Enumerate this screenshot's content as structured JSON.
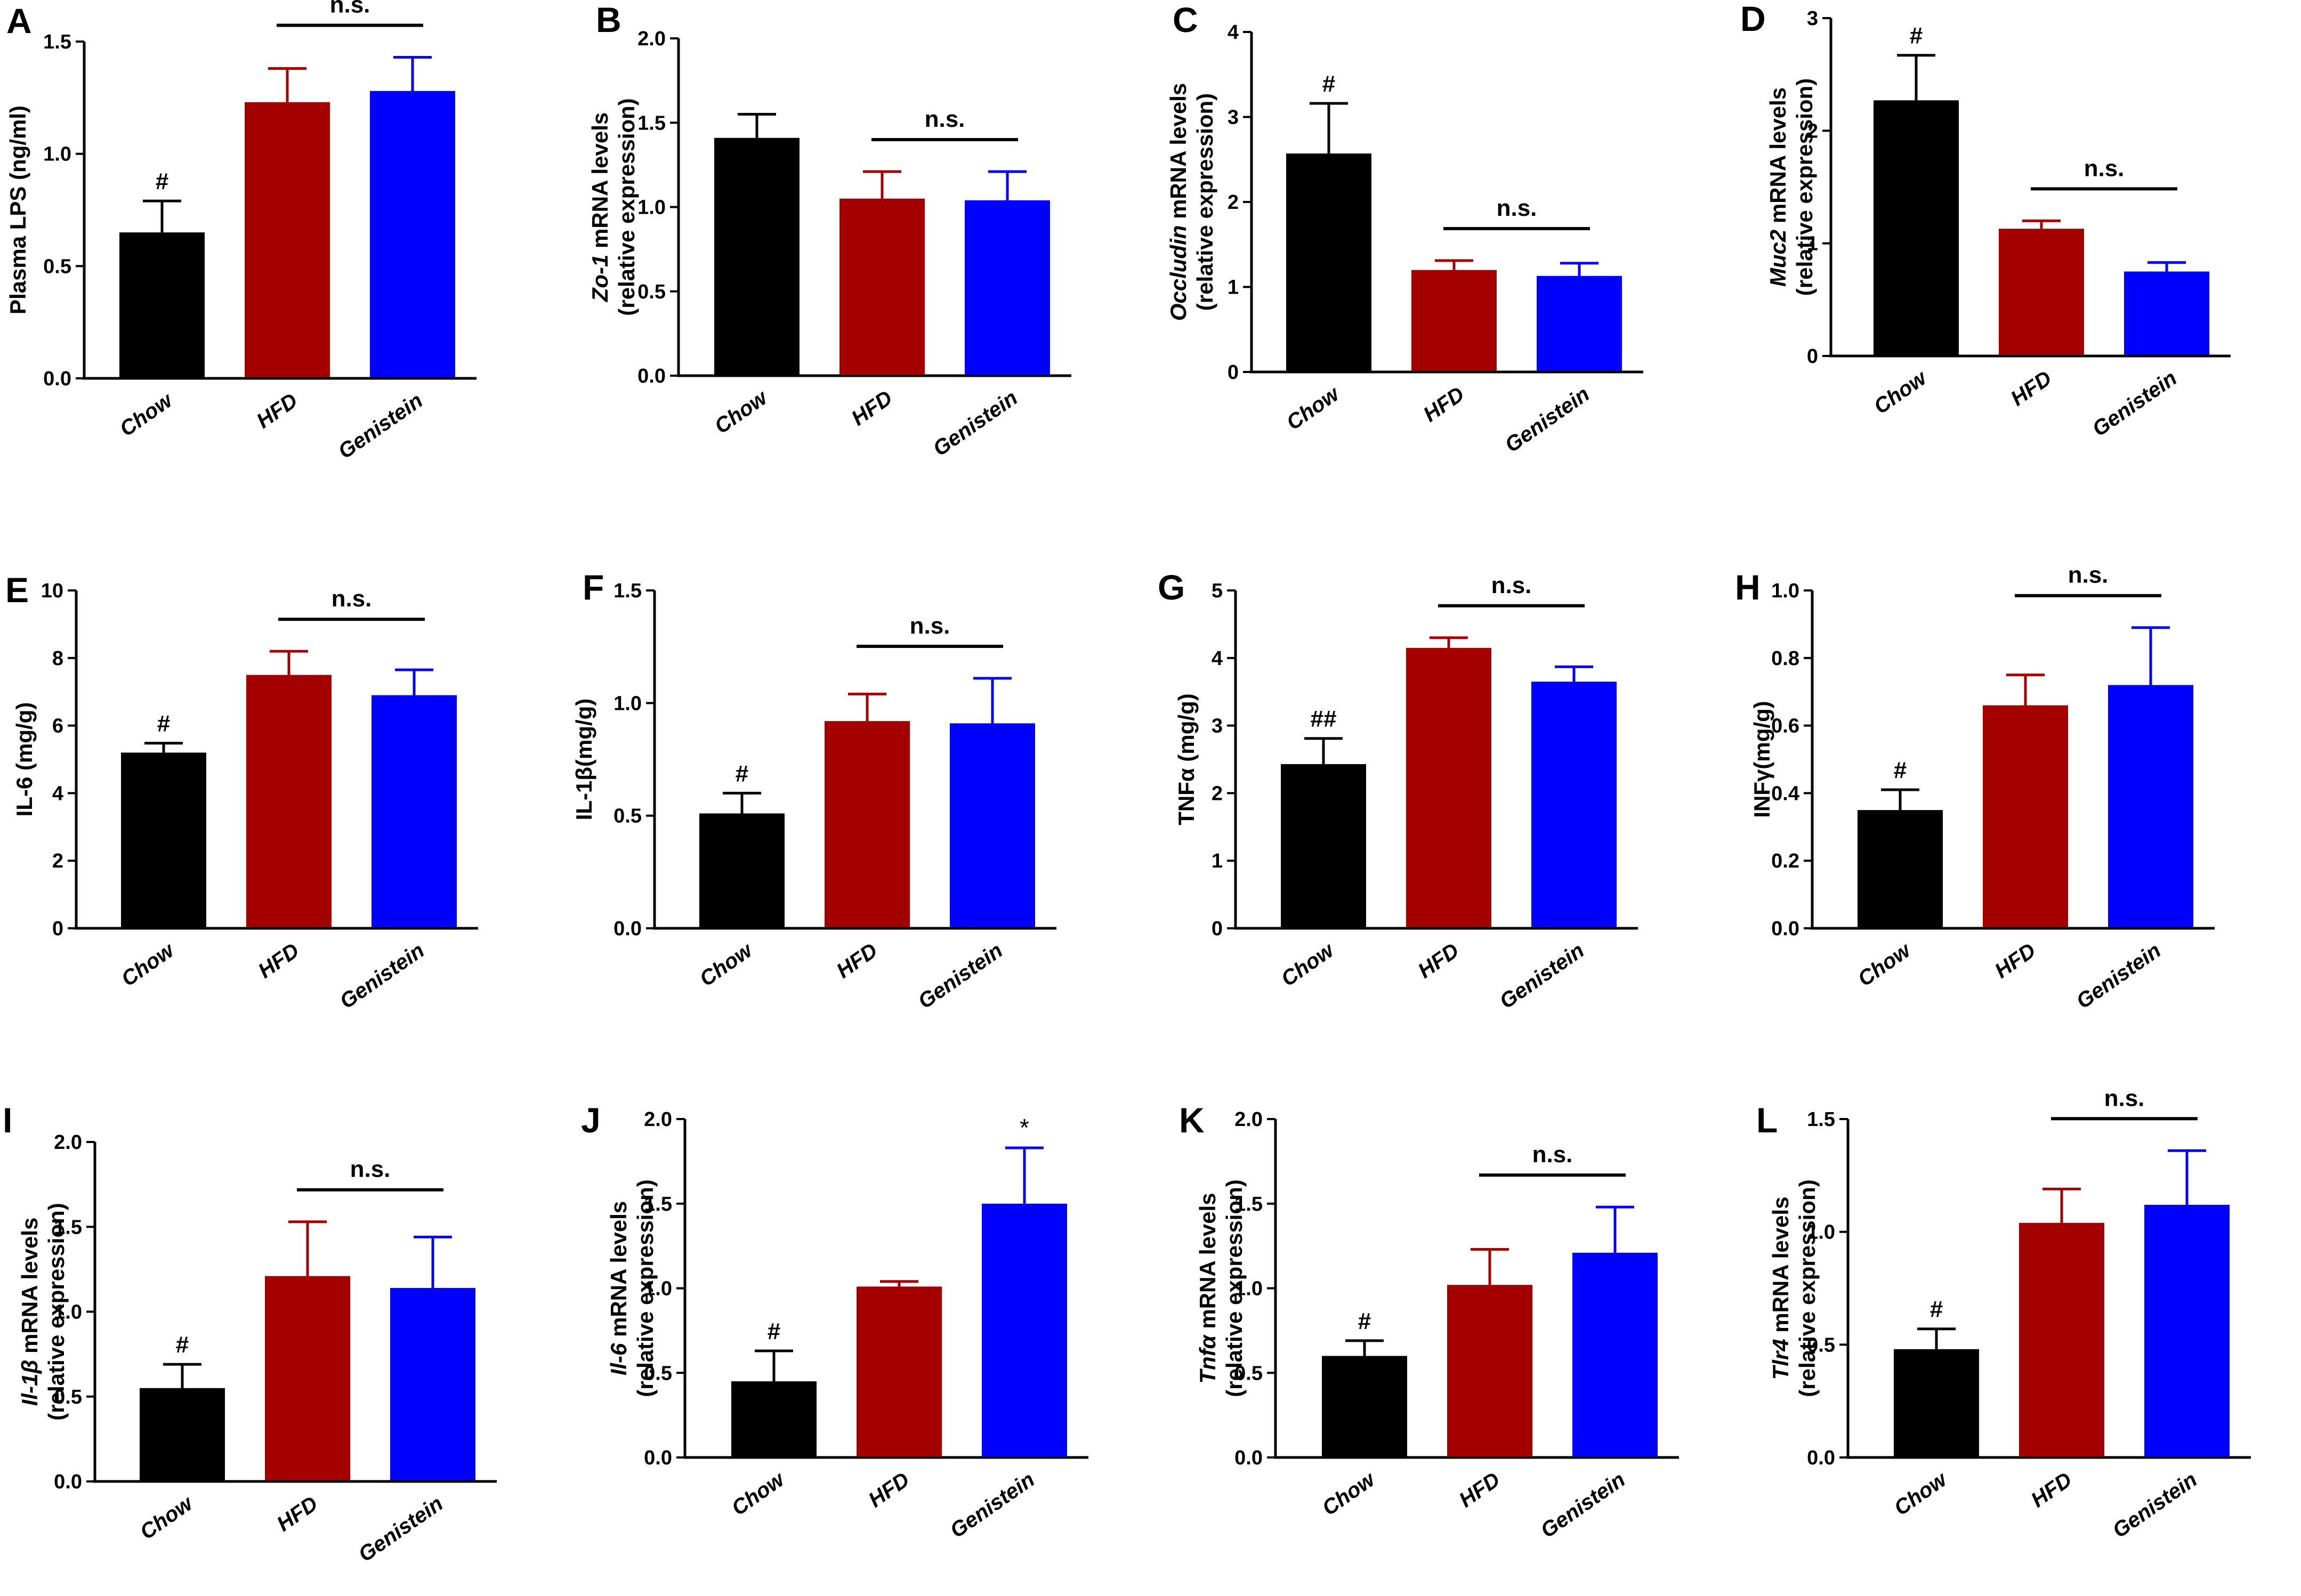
{
  "figure": {
    "categories": [
      "Chow",
      "HFD",
      "Genistein"
    ],
    "colors": {
      "Chow": "#000000",
      "HFD": "#a50000",
      "Genistein": "#0000ff",
      "axis": "#000000"
    }
  },
  "chart_data": [
    {
      "id": "A",
      "type": "bar",
      "letter": "A",
      "ylabel": [
        [
          {
            "t": "Plasma LPS (ng/ml)"
          }
        ]
      ],
      "categories": [
        "Chow",
        "HFD",
        "Genistein"
      ],
      "values": [
        0.65,
        1.23,
        1.28
      ],
      "errors": [
        0.14,
        0.15,
        0.15
      ],
      "ylim": [
        0,
        1.5
      ],
      "yticks": [
        "0.0",
        "0.5",
        "1.0",
        "1.5"
      ],
      "marks": [
        "#",
        "",
        ""
      ],
      "ns": {
        "text": "n.s.",
        "from": 1,
        "to": 2
      }
    },
    {
      "id": "B",
      "type": "bar",
      "letter": "B",
      "ylabel": [
        [
          {
            "t": "Zo-1",
            "i": true
          },
          {
            "t": " mRNA levels"
          }
        ],
        [
          {
            "t": "(relative expression)"
          }
        ]
      ],
      "categories": [
        "Chow",
        "HFD",
        "Genistein"
      ],
      "values": [
        1.41,
        1.05,
        1.04
      ],
      "errors": [
        0.14,
        0.16,
        0.17
      ],
      "ylim": [
        0,
        2.0
      ],
      "yticks": [
        "0.0",
        "0.5",
        "1.0",
        "1.5",
        "2.0"
      ],
      "marks": [
        "",
        "",
        ""
      ],
      "ns": {
        "text": "n.s.",
        "from": 1,
        "to": 2
      }
    },
    {
      "id": "C",
      "type": "bar",
      "letter": "C",
      "ylabel": [
        [
          {
            "t": "Occludin",
            "i": true
          },
          {
            "t": " mRNA levels"
          }
        ],
        [
          {
            "t": "(relative expression)"
          }
        ]
      ],
      "categories": [
        "Chow",
        "HFD",
        "Genistein"
      ],
      "values": [
        2.57,
        1.2,
        1.13
      ],
      "errors": [
        0.59,
        0.11,
        0.15
      ],
      "ylim": [
        0,
        4
      ],
      "yticks": [
        "0",
        "1",
        "2",
        "3",
        "4"
      ],
      "marks": [
        "#",
        "",
        ""
      ],
      "ns": {
        "text": "n.s.",
        "from": 1,
        "to": 2
      }
    },
    {
      "id": "D",
      "type": "bar",
      "letter": "D",
      "ylabel": [
        [
          {
            "t": "Muc2",
            "i": true
          },
          {
            "t": " mRNA levels"
          }
        ],
        [
          {
            "t": "(relative expression)"
          }
        ]
      ],
      "categories": [
        "Chow",
        "HFD",
        "Genistein"
      ],
      "values": [
        2.27,
        1.13,
        0.75
      ],
      "errors": [
        0.4,
        0.07,
        0.08
      ],
      "ylim": [
        0,
        3
      ],
      "yticks": [
        "0",
        "1",
        "2",
        "3"
      ],
      "marks": [
        "#",
        "",
        ""
      ],
      "ns": {
        "text": "n.s.",
        "from": 1,
        "to": 2
      }
    },
    {
      "id": "E",
      "type": "bar",
      "letter": "E",
      "ylabel": [
        [
          {
            "t": "IL-6 (mg/g)"
          }
        ]
      ],
      "categories": [
        "Chow",
        "HFD",
        "Genistein"
      ],
      "values": [
        5.2,
        7.5,
        6.9
      ],
      "errors": [
        0.28,
        0.7,
        0.75
      ],
      "ylim": [
        0,
        10
      ],
      "yticks": [
        "0",
        "2",
        "4",
        "6",
        "8",
        "10"
      ],
      "marks": [
        "#",
        "",
        ""
      ],
      "ns": {
        "text": "n.s.",
        "from": 1,
        "to": 2
      }
    },
    {
      "id": "F",
      "type": "bar",
      "letter": "F",
      "ylabel": [
        [
          {
            "t": "IL-1β(mg/g)"
          }
        ]
      ],
      "categories": [
        "Chow",
        "HFD",
        "Genistein"
      ],
      "values": [
        0.51,
        0.92,
        0.91
      ],
      "errors": [
        0.09,
        0.12,
        0.2
      ],
      "ylim": [
        0,
        1.5
      ],
      "yticks": [
        "0.0",
        "0.5",
        "1.0",
        "1.5"
      ],
      "marks": [
        "#",
        "",
        ""
      ],
      "ns": {
        "text": "n.s.",
        "from": 1,
        "to": 2
      }
    },
    {
      "id": "G",
      "type": "bar",
      "letter": "G",
      "ylabel": [
        [
          {
            "t": "TNFα  (mg/g)"
          }
        ]
      ],
      "categories": [
        "Chow",
        "HFD",
        "Genistein"
      ],
      "values": [
        2.43,
        4.15,
        3.65
      ],
      "errors": [
        0.38,
        0.15,
        0.22
      ],
      "ylim": [
        0,
        5
      ],
      "yticks": [
        "0",
        "1",
        "2",
        "3",
        "4",
        "5"
      ],
      "marks": [
        "##",
        "",
        ""
      ],
      "ns": {
        "text": "n.s.",
        "from": 1,
        "to": 2
      }
    },
    {
      "id": "H",
      "type": "bar",
      "letter": "H",
      "ylabel": [
        [
          {
            "t": "INFγ(mg/g)"
          }
        ]
      ],
      "categories": [
        "Chow",
        "HFD",
        "Genistein"
      ],
      "values": [
        0.35,
        0.66,
        0.72
      ],
      "errors": [
        0.06,
        0.09,
        0.17
      ],
      "ylim": [
        0,
        1.0
      ],
      "yticks": [
        "0.0",
        "0.2",
        "0.4",
        "0.6",
        "0.8",
        "1.0"
      ],
      "marks": [
        "#",
        "",
        ""
      ],
      "ns": {
        "text": "n.s.",
        "from": 1,
        "to": 2
      }
    },
    {
      "id": "I",
      "type": "bar",
      "letter": "I",
      "ylabel": [
        [
          {
            "t": "Il-1β",
            "i": true
          },
          {
            "t": " mRNA levels"
          }
        ],
        [
          {
            "t": "(relative expression)"
          }
        ]
      ],
      "categories": [
        "Chow",
        "HFD",
        "Genistein"
      ],
      "values": [
        0.55,
        1.21,
        1.14
      ],
      "errors": [
        0.14,
        0.32,
        0.3
      ],
      "ylim": [
        0,
        2.0
      ],
      "yticks": [
        "0.0",
        "0.5",
        "1.0",
        "1.5",
        "2.0"
      ],
      "marks": [
        "#",
        "",
        ""
      ],
      "ns": {
        "text": "n.s.",
        "from": 1,
        "to": 2
      }
    },
    {
      "id": "J",
      "type": "bar",
      "letter": "J",
      "ylabel": [
        [
          {
            "t": "Il-6",
            "i": true
          },
          {
            "t": " mRNA levels"
          }
        ],
        [
          {
            "t": "(relative expression)"
          }
        ]
      ],
      "categories": [
        "Chow",
        "HFD",
        "Genistein"
      ],
      "values": [
        0.45,
        1.01,
        1.5
      ],
      "errors": [
        0.18,
        0.03,
        0.33
      ],
      "ylim": [
        0,
        2.0
      ],
      "yticks": [
        "0.0",
        "0.5",
        "1.0",
        "1.5",
        "2.0"
      ],
      "marks": [
        "#",
        "",
        "*"
      ],
      "ns": null
    },
    {
      "id": "K",
      "type": "bar",
      "letter": "K",
      "ylabel": [
        [
          {
            "t": "Tnfα",
            "i": true
          },
          {
            "t": " mRNA levels"
          }
        ],
        [
          {
            "t": "(relative expression)"
          }
        ]
      ],
      "categories": [
        "Chow",
        "HFD",
        "Genistein"
      ],
      "values": [
        0.6,
        1.02,
        1.21
      ],
      "errors": [
        0.09,
        0.21,
        0.27
      ],
      "ylim": [
        0,
        2.0
      ],
      "yticks": [
        "0.0",
        "0.5",
        "1.0",
        "1.5",
        "2.0"
      ],
      "marks": [
        "#",
        "",
        ""
      ],
      "ns": {
        "text": "n.s.",
        "from": 1,
        "to": 2
      }
    },
    {
      "id": "L",
      "type": "bar",
      "letter": "L",
      "ylabel": [
        [
          {
            "t": "Tlr4",
            "i": true
          },
          {
            "t": " mRNA levels"
          }
        ],
        [
          {
            "t": "(relative expression)"
          }
        ]
      ],
      "categories": [
        "Chow",
        "HFD",
        "Genistein"
      ],
      "values": [
        0.48,
        1.04,
        1.12
      ],
      "errors": [
        0.09,
        0.15,
        0.24
      ],
      "ylim": [
        0,
        1.5
      ],
      "yticks": [
        "0.0",
        "0.5",
        "1.0",
        "1.5"
      ],
      "marks": [
        "#",
        "",
        ""
      ],
      "ns": {
        "text": "n.s.",
        "from": 1,
        "to": 2
      }
    }
  ]
}
